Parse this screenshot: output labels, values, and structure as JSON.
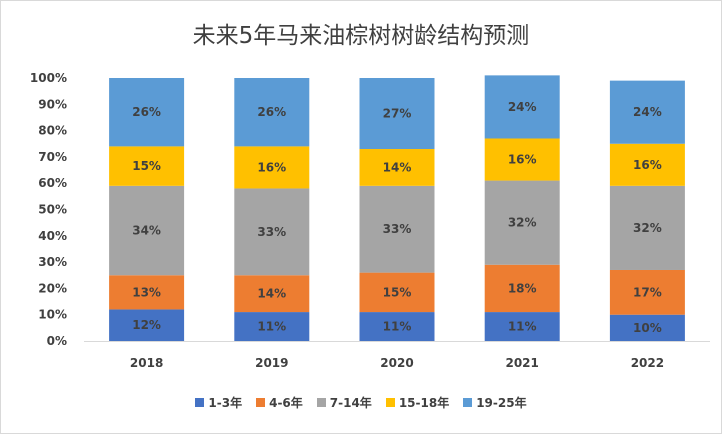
{
  "chart_data": {
    "type": "bar",
    "stacked": true,
    "title": "未来5年马来油棕树树龄结构预测",
    "categories": [
      "2018",
      "2019",
      "2020",
      "2021",
      "2022"
    ],
    "ylim": [
      0,
      100
    ],
    "yticks": [
      "0%",
      "10%",
      "20%",
      "30%",
      "40%",
      "50%",
      "60%",
      "70%",
      "80%",
      "90%",
      "100%"
    ],
    "grid": false,
    "legend_position": "bottom",
    "series": [
      {
        "name": "1-3年",
        "color": "#4472c4",
        "values": [
          12,
          11,
          11,
          11,
          10
        ],
        "labels": [
          "12%",
          "11%",
          "11%",
          "11%",
          "10%"
        ]
      },
      {
        "name": "4-6年",
        "color": "#ed7d31",
        "values": [
          13,
          14,
          15,
          18,
          17
        ],
        "labels": [
          "13%",
          "14%",
          "15%",
          "18%",
          "17%"
        ]
      },
      {
        "name": "7-14年",
        "color": "#a5a5a5",
        "values": [
          34,
          33,
          33,
          32,
          32
        ],
        "labels": [
          "34%",
          "33%",
          "33%",
          "32%",
          "32%"
        ]
      },
      {
        "name": "15-18年",
        "color": "#ffc000",
        "values": [
          15,
          16,
          14,
          16,
          16
        ],
        "labels": [
          "15%",
          "16%",
          "14%",
          "16%",
          "16%"
        ]
      },
      {
        "name": "19-25年",
        "color": "#5b9bd5",
        "values": [
          26,
          26,
          27,
          24,
          24
        ],
        "labels": [
          "26%",
          "26%",
          "27%",
          "24%",
          "24%"
        ]
      }
    ]
  }
}
